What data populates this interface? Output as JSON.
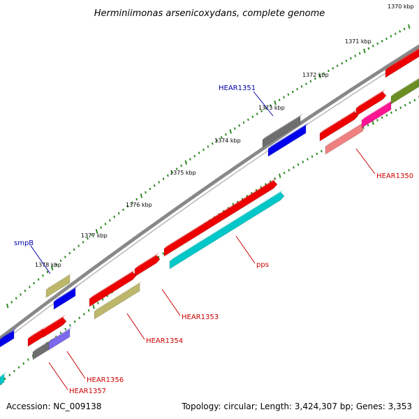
{
  "title": "Herminiimonas arsenicoxydans, complete genome",
  "accession": "Accession: NC_009138",
  "summary": "Topology: circular; Length: 3,424,307 bp; Genes: 3,353",
  "colors": {
    "background": "#ffffff",
    "backbone": "#888888",
    "tick": "#2e8b22",
    "forward_label": "#0000aa",
    "reverse_label": "#cc0000"
  },
  "ruler": {
    "unit": "kbp",
    "major_ticks": [
      {
        "value": 1370,
        "label": "1370 kbp"
      },
      {
        "value": 1371,
        "label": "1371 kbp"
      },
      {
        "value": 1372,
        "label": "1372 kbp"
      },
      {
        "value": 1373,
        "label": "1373 kbp"
      },
      {
        "value": 1374,
        "label": "1374 kbp"
      },
      {
        "value": 1375,
        "label": "1375 kbp"
      },
      {
        "value": 1376,
        "label": "1376 kbp"
      },
      {
        "value": 1377,
        "label": "1377 kbp"
      },
      {
        "value": 1378,
        "label": "1378 kbp"
      }
    ]
  },
  "genes": [
    {
      "name": "HEAR1351",
      "strand": "forward",
      "color": "#6e6e6e",
      "labeled": true
    },
    {
      "name": "smpB",
      "strand": "forward",
      "color": "#bdb76b",
      "labeled": true
    },
    {
      "name": "",
      "strand": "forward",
      "color": "#0000ee",
      "labeled": false
    },
    {
      "name": "HEAR1350",
      "strand": "reverse",
      "color": "#f08080",
      "labeled": true
    },
    {
      "name": "pps",
      "strand": "reverse",
      "color": "#00c8c8",
      "labeled": true
    },
    {
      "name": "HEAR1353",
      "strand": "reverse",
      "color": "#ee0000",
      "labeled": true
    },
    {
      "name": "HEAR1354",
      "strand": "reverse",
      "color": "#bdb76b",
      "labeled": true
    },
    {
      "name": "HEAR1356",
      "strand": "reverse",
      "color": "#7b68ee",
      "labeled": true
    },
    {
      "name": "HEAR1357",
      "strand": "reverse",
      "color": "#6e6e6e",
      "labeled": true
    }
  ]
}
